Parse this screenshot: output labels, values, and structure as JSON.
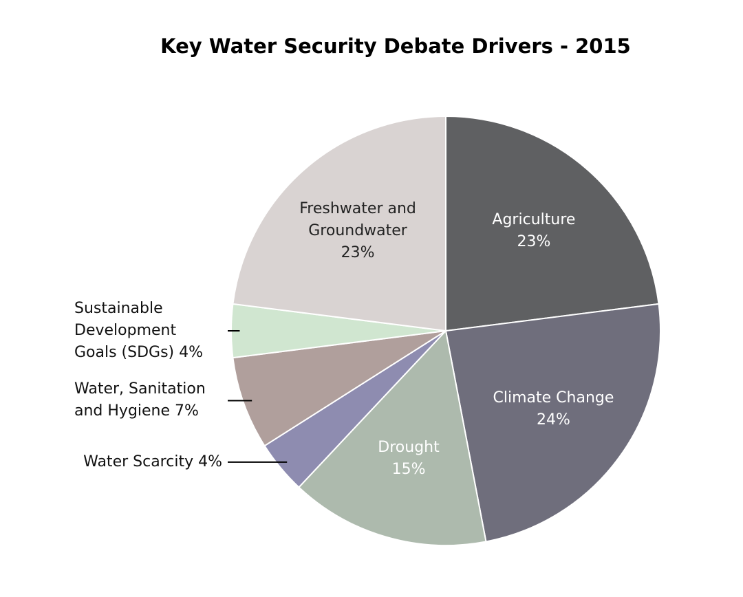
{
  "chart_data": {
    "type": "pie",
    "title": "Key Water Security Debate Drivers - 2015",
    "categories": [
      "Agriculture",
      "Climate Change",
      "Drought",
      "Water Scarcity",
      "Water, Sanitation and Hygiene",
      "Sustainable Development Goals (SDGs)",
      "Freshwater and Groundwater"
    ],
    "values": [
      23,
      24,
      15,
      4,
      7,
      4,
      23
    ],
    "value_labels": [
      "23%",
      "24%",
      "15%",
      "4%",
      "7%",
      "4%",
      "23%"
    ],
    "colors": [
      "#5f6062",
      "#6f6e7c",
      "#adbaad",
      "#8e8cb0",
      "#b09f9c",
      "#d0e6d0",
      "#d9d3d2"
    ]
  }
}
